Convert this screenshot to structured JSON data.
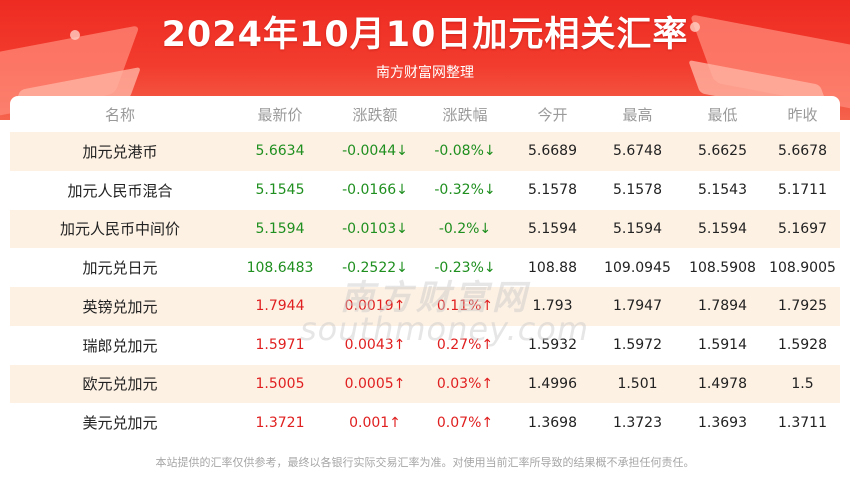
{
  "header": {
    "title": "2024年10月10日加元相关汇率",
    "subtitle": "南方财富网整理"
  },
  "table": {
    "columns": [
      "名称",
      "最新价",
      "涨跌额",
      "涨跌幅",
      "今开",
      "最高",
      "最低",
      "昨收"
    ],
    "rows": [
      {
        "name": "加元兑港币",
        "latest": "5.6634",
        "change": "-0.0044↓",
        "pct": "-0.08%↓",
        "open": "5.6689",
        "high": "5.6748",
        "low": "5.6625",
        "prev": "5.6678",
        "trend": "down"
      },
      {
        "name": "加元人民币混合",
        "latest": "5.1545",
        "change": "-0.0166↓",
        "pct": "-0.32%↓",
        "open": "5.1578",
        "high": "5.1578",
        "low": "5.1543",
        "prev": "5.1711",
        "trend": "down"
      },
      {
        "name": "加元人民币中间价",
        "latest": "5.1594",
        "change": "-0.0103↓",
        "pct": "-0.2%↓",
        "open": "5.1594",
        "high": "5.1594",
        "low": "5.1594",
        "prev": "5.1697",
        "trend": "down"
      },
      {
        "name": "加元兑日元",
        "latest": "108.6483",
        "change": "-0.2522↓",
        "pct": "-0.23%↓",
        "open": "108.88",
        "high": "109.0945",
        "low": "108.5908",
        "prev": "108.9005",
        "trend": "down"
      },
      {
        "name": "英镑兑加元",
        "latest": "1.7944",
        "change": "0.0019↑",
        "pct": "0.11%↑",
        "open": "1.793",
        "high": "1.7947",
        "low": "1.7894",
        "prev": "1.7925",
        "trend": "up"
      },
      {
        "name": "瑞郎兑加元",
        "latest": "1.5971",
        "change": "0.0043↑",
        "pct": "0.27%↑",
        "open": "1.5932",
        "high": "1.5972",
        "low": "1.5914",
        "prev": "1.5928",
        "trend": "up"
      },
      {
        "name": "欧元兑加元",
        "latest": "1.5005",
        "change": "0.0005↑",
        "pct": "0.03%↑",
        "open": "1.4996",
        "high": "1.501",
        "low": "1.4978",
        "prev": "1.5",
        "trend": "up"
      },
      {
        "name": "美元兑加元",
        "latest": "1.3721",
        "change": "0.001↑",
        "pct": "0.07%↑",
        "open": "1.3698",
        "high": "1.3723",
        "low": "1.3693",
        "prev": "1.3711",
        "trend": "up"
      }
    ]
  },
  "watermark": {
    "line1": "南方财富网",
    "line2": "southmoney.com"
  },
  "footer": {
    "disclaimer": "本站提供的汇率仅供参考，最终以各银行实际交易汇率为准。对使用当前汇率所导致的结果概不承担任何责任。"
  },
  "colors": {
    "banner": "#ee2b22",
    "up": "#e02020",
    "down": "#1f8f1f",
    "stripe": "#fdf1e4"
  }
}
